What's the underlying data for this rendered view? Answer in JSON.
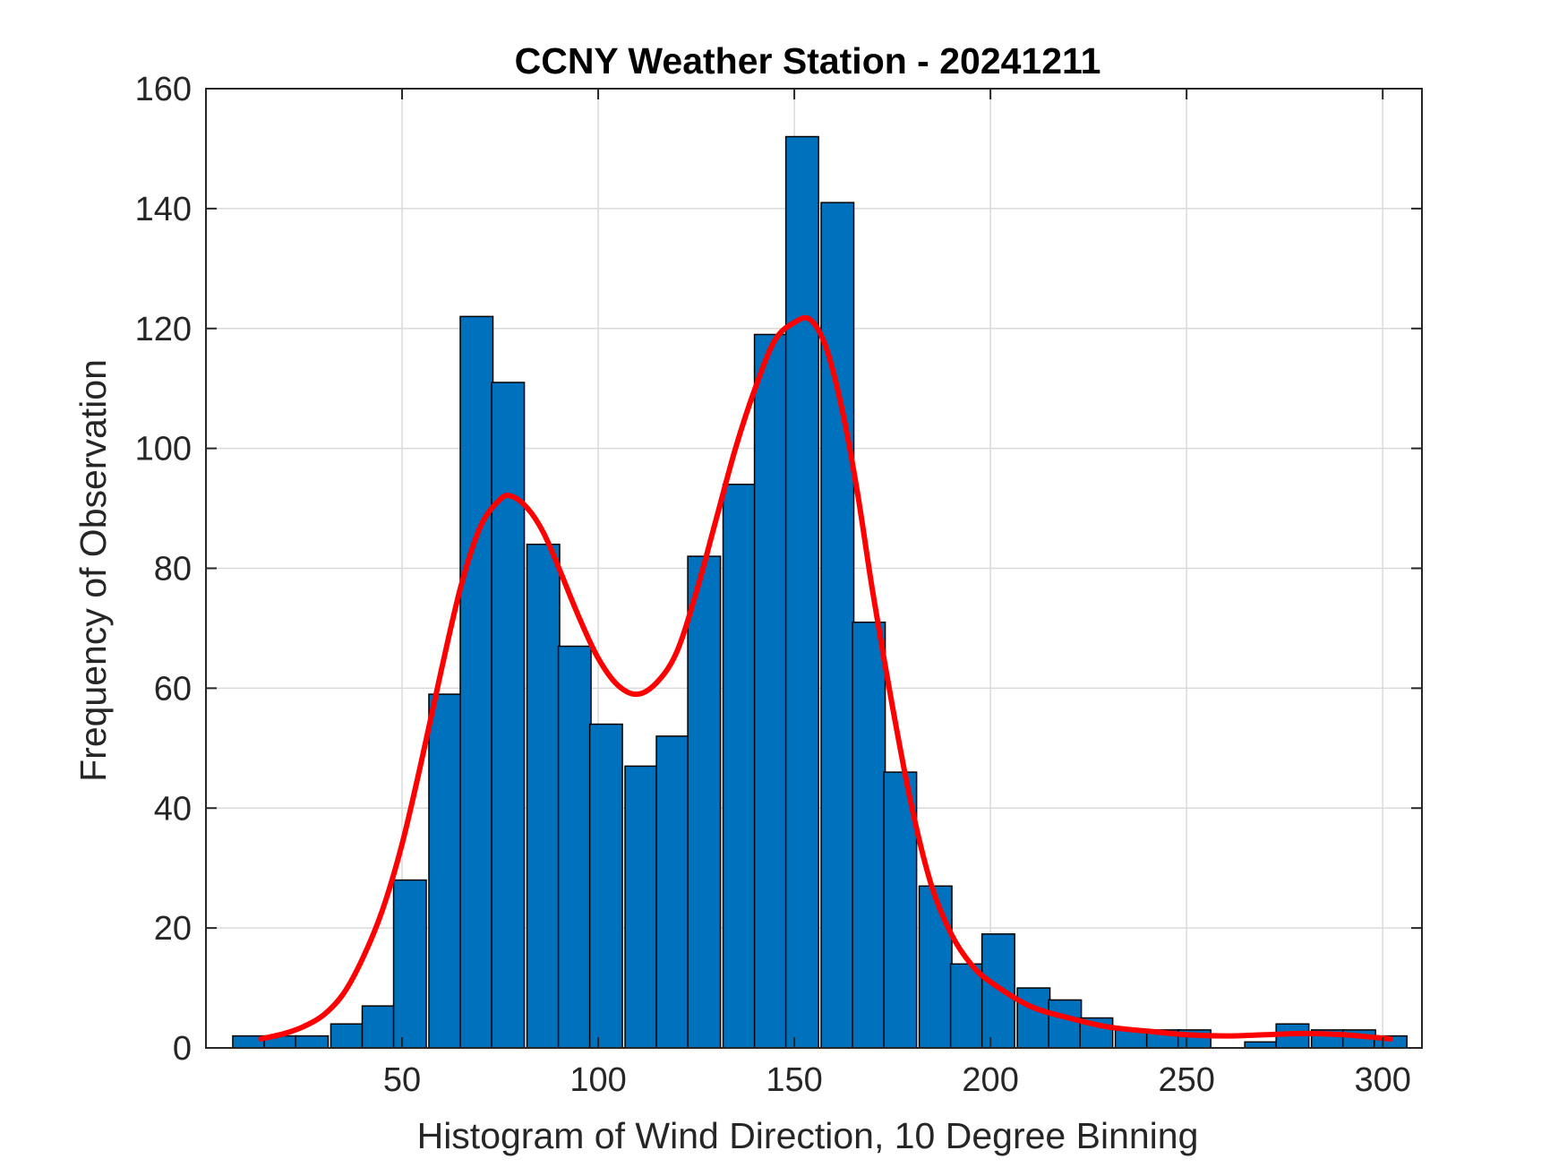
{
  "chart_data": {
    "type": "bar",
    "title": "CCNY Weather Station - 20241211",
    "xlabel": "Histogram of Wind Direction, 10 Degree Binning",
    "ylabel": "Frequency of Observation",
    "xlim": [
      0,
      310
    ],
    "ylim": [
      0,
      160
    ],
    "xticks": [
      50,
      100,
      150,
      200,
      250,
      300
    ],
    "yticks": [
      0,
      20,
      40,
      60,
      80,
      100,
      120,
      140,
      160
    ],
    "grid": true,
    "bin_width": 8.33,
    "bars": [
      {
        "x": 11,
        "value": 2
      },
      {
        "x": 19,
        "value": 2
      },
      {
        "x": 27,
        "value": 2
      },
      {
        "x": 36,
        "value": 4
      },
      {
        "x": 44,
        "value": 7
      },
      {
        "x": 52,
        "value": 28
      },
      {
        "x": 61,
        "value": 59
      },
      {
        "x": 69,
        "value": 122
      },
      {
        "x": 77,
        "value": 111
      },
      {
        "x": 86,
        "value": 84
      },
      {
        "x": 94,
        "value": 67
      },
      {
        "x": 102,
        "value": 54
      },
      {
        "x": 111,
        "value": 47
      },
      {
        "x": 119,
        "value": 52
      },
      {
        "x": 127,
        "value": 82
      },
      {
        "x": 136,
        "value": 94
      },
      {
        "x": 144,
        "value": 119
      },
      {
        "x": 152,
        "value": 152
      },
      {
        "x": 161,
        "value": 141
      },
      {
        "x": 169,
        "value": 71
      },
      {
        "x": 177,
        "value": 46
      },
      {
        "x": 186,
        "value": 27
      },
      {
        "x": 194,
        "value": 14
      },
      {
        "x": 202,
        "value": 19
      },
      {
        "x": 211,
        "value": 10
      },
      {
        "x": 219,
        "value": 8
      },
      {
        "x": 227,
        "value": 5
      },
      {
        "x": 236,
        "value": 3
      },
      {
        "x": 244,
        "value": 3
      },
      {
        "x": 252,
        "value": 3
      },
      {
        "x": 261,
        "value": 0
      },
      {
        "x": 269,
        "value": 1
      },
      {
        "x": 277,
        "value": 4
      },
      {
        "x": 286,
        "value": 3
      },
      {
        "x": 294,
        "value": 3
      },
      {
        "x": 302,
        "value": 2
      }
    ],
    "fit_curve": {
      "x": [
        14,
        20,
        25,
        30,
        35,
        40,
        45,
        50,
        55,
        60,
        65,
        70,
        75,
        78,
        82,
        86,
        90,
        95,
        100,
        105,
        110,
        115,
        120,
        125,
        130,
        135,
        140,
        145,
        150,
        154,
        158,
        162,
        166,
        170,
        175,
        180,
        185,
        190,
        195,
        200,
        210,
        220,
        230,
        240,
        250,
        260,
        270,
        280,
        290,
        302
      ],
      "y": [
        1.5,
        2.4,
        3.6,
        5.5,
        9,
        15,
        23,
        34,
        48,
        63,
        77,
        87,
        91.5,
        92,
        90,
        86,
        80,
        72,
        65,
        60.5,
        59,
        61,
        66,
        76,
        88,
        100,
        110,
        118,
        121,
        121.5,
        117,
        107,
        93,
        76,
        57,
        40,
        27,
        19,
        14,
        11,
        7,
        5,
        3.5,
        2.8,
        2.2,
        2,
        2.2,
        2.4,
        2.2,
        1.5
      ],
      "color": "#ff0000"
    },
    "colors": {
      "bar_fill": "#0072bd",
      "bar_edge": "#000000",
      "grid": "#dadada",
      "axes": "#262626"
    }
  }
}
